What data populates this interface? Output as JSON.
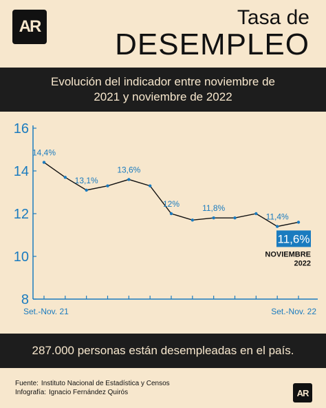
{
  "brand": {
    "logo_text": "AR"
  },
  "header": {
    "title_small": "Tasa de",
    "title_big": "DESEMPLEO"
  },
  "subtitle": "Evolución del indicador entre noviembre de 2021 y noviembre de 2022",
  "highlight": "287.000 personas están desempleadas en el país.",
  "footer": {
    "source_label": "Fuente:",
    "source_value": "Instituto Nacional de Estadística y Censos",
    "credit_label": "Infografía:",
    "credit_value": "Ignacio Fernández Quirós"
  },
  "colors": {
    "background": "#f7e7cd",
    "band": "#1d1d1d",
    "accent": "#1a7bbf",
    "line": "#111111"
  },
  "chart_data": {
    "type": "line",
    "title": "",
    "xlabel": "",
    "ylabel": "",
    "ylim": [
      8,
      16
    ],
    "yticks": [
      "8",
      "10",
      "12",
      "14",
      "16"
    ],
    "x_labels_shown": [
      "Set.-Nov. 21",
      "Set.-Nov. 22"
    ],
    "values": [
      14.4,
      13.7,
      13.1,
      13.3,
      13.6,
      13.3,
      12.0,
      11.7,
      11.8,
      11.8,
      12.0,
      11.4,
      11.6
    ],
    "data_labels": [
      "14,4%",
      "",
      "13,1%",
      "",
      "13,6%",
      "",
      "12%",
      "",
      "11,8%",
      "",
      "",
      "11,4%",
      "11,6%"
    ],
    "last_callout": {
      "value": "11,6%",
      "caption_line1": "NOVIEMBRE",
      "caption_line2": "2022"
    },
    "grid": false
  }
}
